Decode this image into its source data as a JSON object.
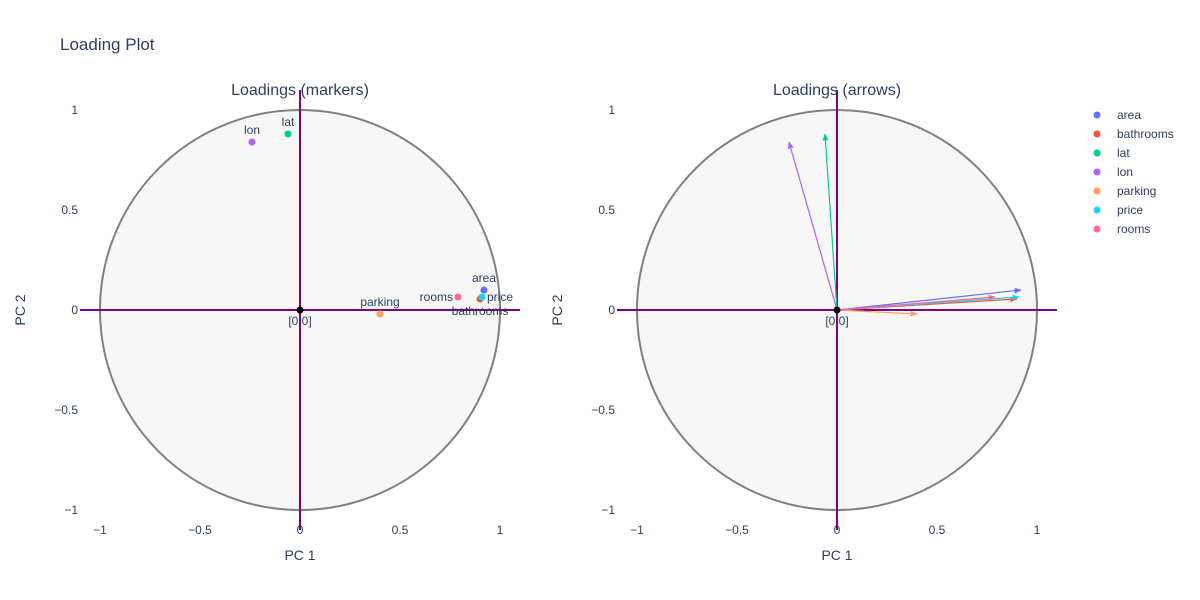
{
  "figure": {
    "title": "Loading Plot"
  },
  "colors": {
    "circle_fill": "#f7f7f7",
    "circle_stroke": "#808080",
    "axis_line": "#800080",
    "origin": "#000000",
    "text": "#2a3f5f"
  },
  "chart_data": [
    {
      "type": "scatter",
      "title": "Loadings (markers)",
      "xlabel": "PC 1",
      "ylabel": "PC 2",
      "xlim": [
        -1.1,
        1.1
      ],
      "ylim": [
        -1.1,
        1.1
      ],
      "xticks": [
        "−1",
        "−0.5",
        "0",
        "0.5",
        "1"
      ],
      "yticks": [
        "−1",
        "−0.5",
        "0",
        "0.5",
        "1"
      ],
      "grid": false,
      "unit_circle": true,
      "origin_label": "[0,0]",
      "points": [
        {
          "name": "area",
          "x": 0.92,
          "y": 0.1,
          "color": "#636efa",
          "label_pos": "top"
        },
        {
          "name": "bathrooms",
          "x": 0.9,
          "y": 0.055,
          "color": "#ef553b",
          "label_pos": "bottom"
        },
        {
          "name": "lat",
          "x": -0.06,
          "y": 0.88,
          "color": "#00cc96",
          "label_pos": "top"
        },
        {
          "name": "lon",
          "x": -0.24,
          "y": 0.84,
          "color": "#ab63fa",
          "label_pos": "top"
        },
        {
          "name": "parking",
          "x": 0.4,
          "y": -0.02,
          "color": "#ffa15a",
          "label_pos": "top"
        },
        {
          "name": "price",
          "x": 0.91,
          "y": 0.065,
          "color": "#19d3f3",
          "label_pos": "right"
        },
        {
          "name": "rooms",
          "x": 0.79,
          "y": 0.065,
          "color": "#ff6692",
          "label_pos": "left"
        }
      ]
    },
    {
      "type": "scatter",
      "title": "Loadings (arrows)",
      "xlabel": "PC 1",
      "ylabel": "PC 2",
      "xlim": [
        -1.1,
        1.1
      ],
      "ylim": [
        -1.1,
        1.1
      ],
      "xticks": [
        "−1",
        "−0.5",
        "0",
        "0.5",
        "1"
      ],
      "yticks": [
        "−1",
        "−0.5",
        "0",
        "0.5",
        "1"
      ],
      "grid": false,
      "unit_circle": true,
      "origin_label": "[0,0]",
      "arrows": [
        {
          "name": "area",
          "x": 0.92,
          "y": 0.1,
          "color": "#636efa"
        },
        {
          "name": "bathrooms",
          "x": 0.9,
          "y": 0.055,
          "color": "#ef553b"
        },
        {
          "name": "lat",
          "x": -0.06,
          "y": 0.88,
          "color": "#00cc96"
        },
        {
          "name": "lon",
          "x": -0.24,
          "y": 0.84,
          "color": "#ab63fa"
        },
        {
          "name": "parking",
          "x": 0.4,
          "y": -0.02,
          "color": "#ffa15a"
        },
        {
          "name": "price",
          "x": 0.91,
          "y": 0.065,
          "color": "#19d3f3"
        },
        {
          "name": "rooms",
          "x": 0.79,
          "y": 0.065,
          "color": "#ff6692"
        }
      ]
    }
  ],
  "legend": {
    "placement": "right",
    "items": [
      {
        "name": "area",
        "color": "#636efa"
      },
      {
        "name": "bathrooms",
        "color": "#ef553b"
      },
      {
        "name": "lat",
        "color": "#00cc96"
      },
      {
        "name": "lon",
        "color": "#ab63fa"
      },
      {
        "name": "parking",
        "color": "#ffa15a"
      },
      {
        "name": "price",
        "color": "#19d3f3"
      },
      {
        "name": "rooms",
        "color": "#ff6692"
      }
    ]
  }
}
